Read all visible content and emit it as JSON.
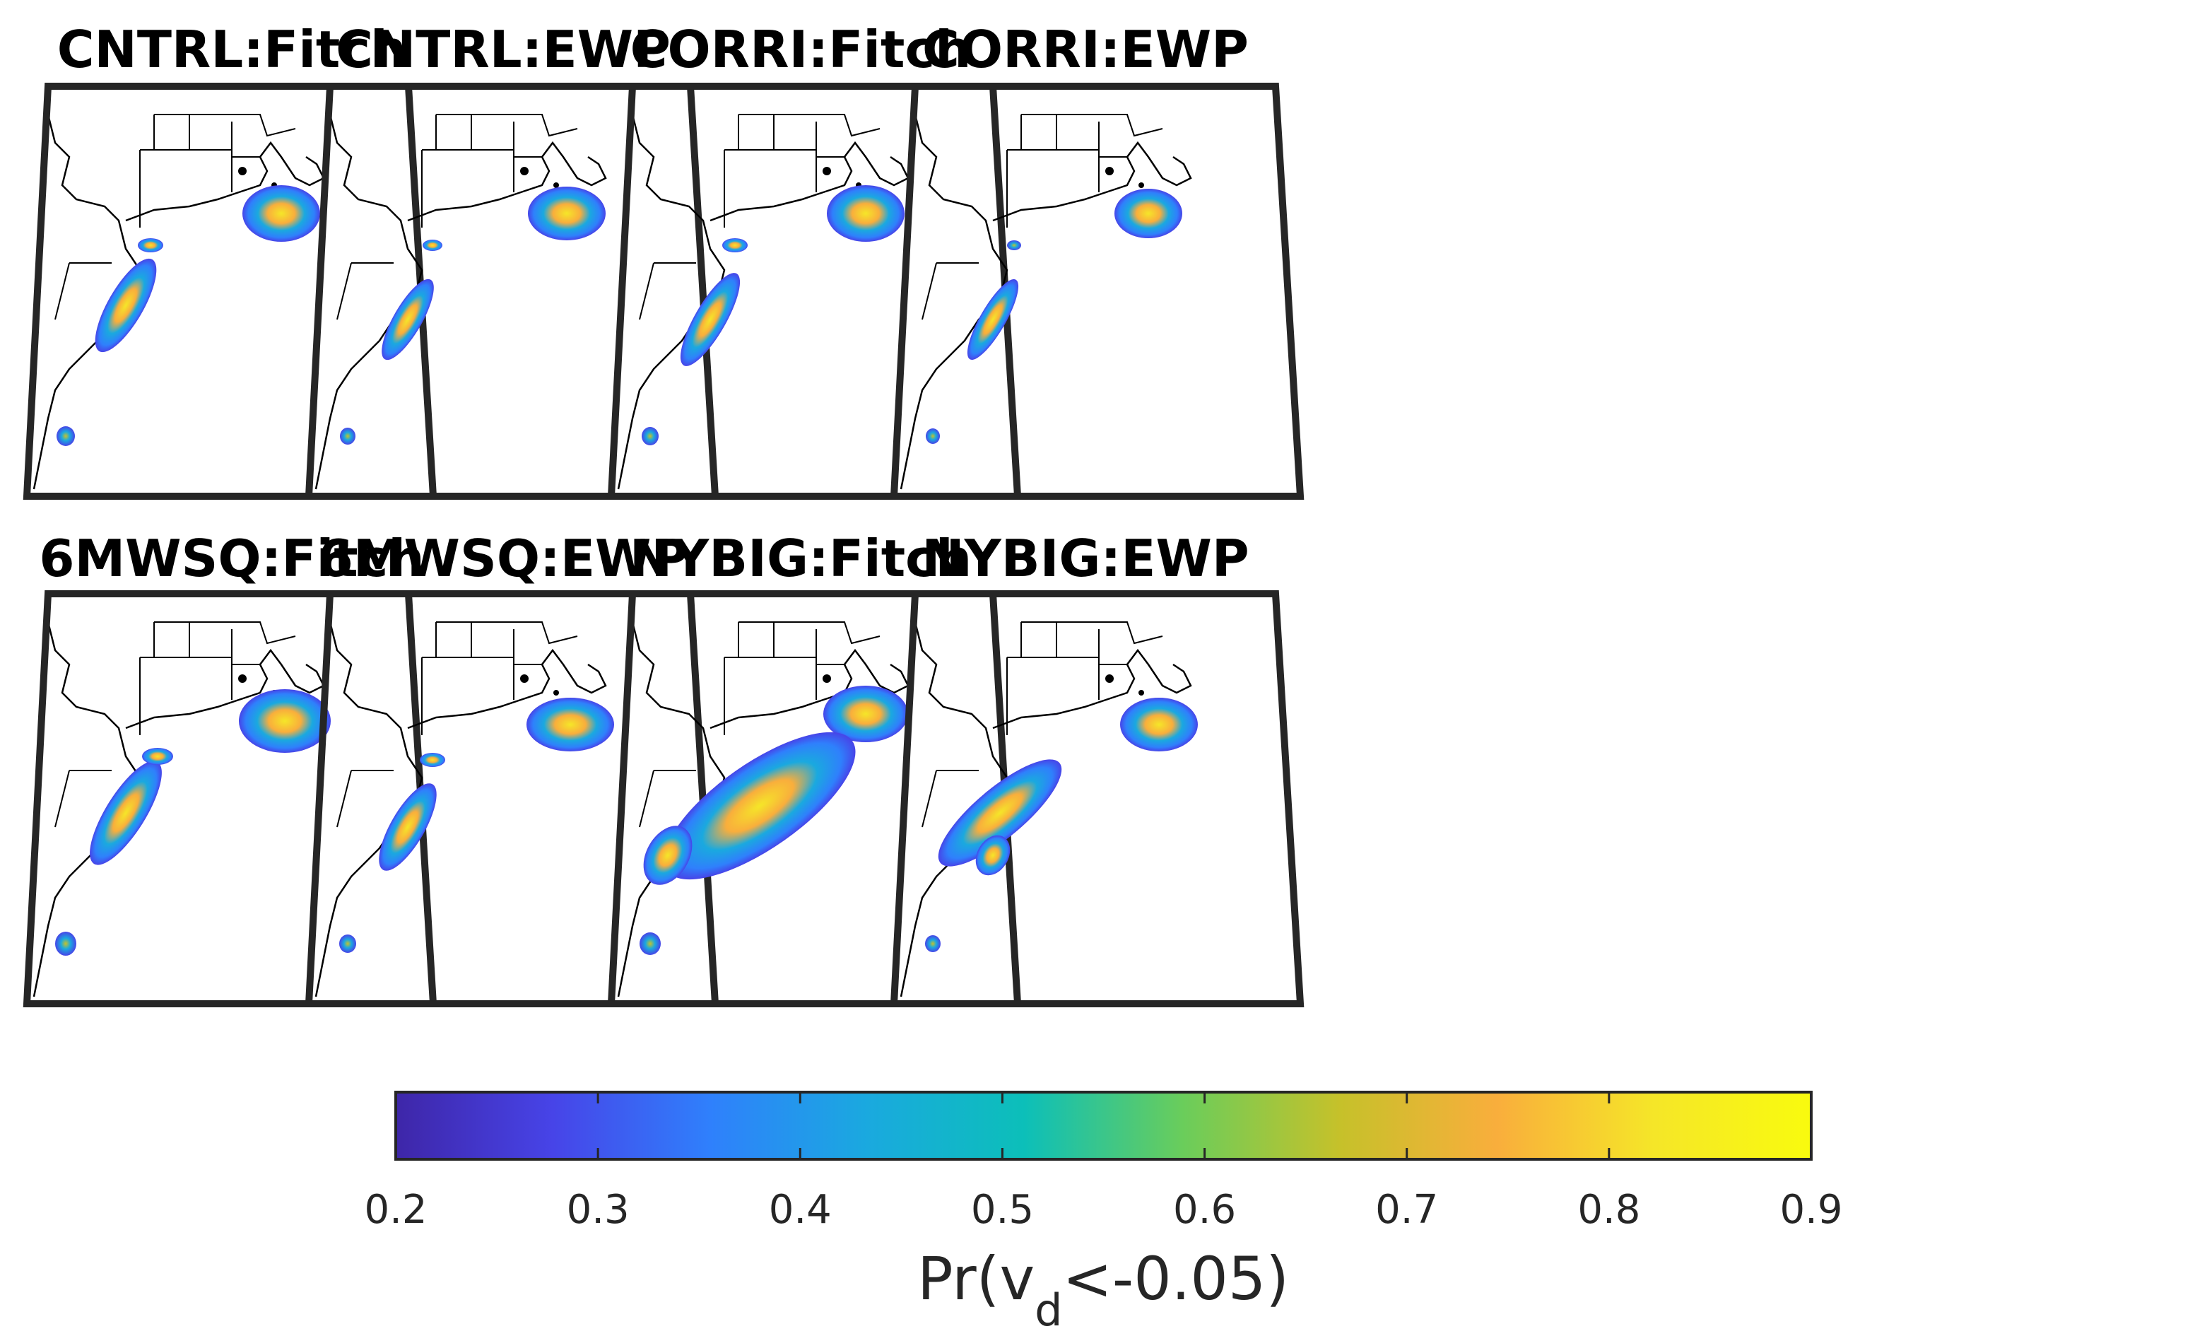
{
  "chart_data": {
    "type": "heatmap",
    "description_kind": "small-multiple probability maps",
    "panels": [
      {
        "title": "CNTRL:Fitch",
        "maxima": [
          0.88,
          0.85,
          0.8,
          0.6
        ]
      },
      {
        "title": "CNTRL:EWP",
        "maxima": [
          0.82,
          0.78,
          0.72,
          0.55
        ]
      },
      {
        "title": "CORRI:Fitch",
        "maxima": [
          0.85,
          0.82,
          0.75,
          0.6
        ]
      },
      {
        "title": "CORRI:EWP",
        "maxima": [
          0.8,
          0.75,
          0.65,
          0.5
        ]
      },
      {
        "title": "6MWSQ:Fitch",
        "maxima": [
          0.9,
          0.88,
          0.8,
          0.65
        ]
      },
      {
        "title": "6MWSQ:EWP",
        "maxima": [
          0.85,
          0.8,
          0.75,
          0.55
        ]
      },
      {
        "title": "NYBIG:Fitch",
        "maxima": [
          0.88,
          0.85,
          0.8,
          0.6
        ]
      },
      {
        "title": "NYBIG:EWP",
        "maxima": [
          0.85,
          0.82,
          0.75,
          0.55
        ]
      }
    ],
    "colorbar": {
      "min": 0.2,
      "max": 0.9,
      "ticks": [
        "0.2",
        "0.3",
        "0.4",
        "0.5",
        "0.6",
        "0.7",
        "0.8",
        "0.9"
      ],
      "label_prefix": "Pr(v",
      "label_subscript": "d",
      "label_suffix": "<-0.05)",
      "colormap": [
        "#3e26a8",
        "#4744e8",
        "#2f80fc",
        "#1aa9df",
        "#0cbfb9",
        "#6acd5b",
        "#c6c12a",
        "#f9ae3c",
        "#f5e628",
        "#f9fb0e"
      ]
    }
  }
}
